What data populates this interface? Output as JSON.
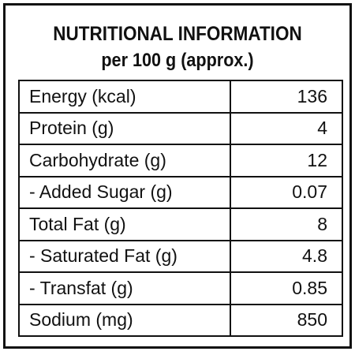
{
  "header": {
    "title": "NUTRITIONAL INFORMATION",
    "subtitle": "per 100 g (approx.)"
  },
  "table": {
    "rows": [
      [
        "Energy (kcal)",
        "136"
      ],
      [
        "Protein (g)",
        "4"
      ],
      [
        "Carbohydrate (g)",
        "12"
      ],
      [
        "- Added Sugar (g)",
        "0.07"
      ],
      [
        "Total Fat (g)",
        "8"
      ],
      [
        "- Saturated Fat (g)",
        "4.8"
      ],
      [
        "- Transfat (g)",
        "0.85"
      ],
      [
        "Sodium (mg)",
        "850"
      ]
    ]
  }
}
